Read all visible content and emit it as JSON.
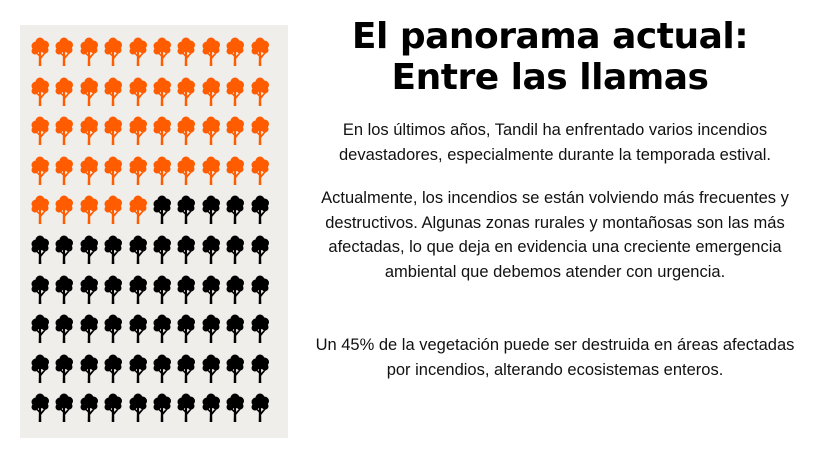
{
  "title_line1": "El panorama actual:",
  "title_line2": "Entre las llamas",
  "paragraphs": [
    "En los últimos años, Tandil ha enfrentado varios incendios devastadores, especialmente durante la temporada estival.",
    "Actualmente, los incendios se están volviendo más frecuentes y destructivos. Algunas zonas rurales y montañosas son las más afectadas, lo que deja en evidencia una creciente emergencia ambiental que debemos atender con urgencia.",
    "Un 45% de la vegetación puede ser destruida en áreas afectadas por incendios, alterando ecosistemas enteros."
  ],
  "pictogram": {
    "total": 100,
    "highlighted": 45,
    "icon": "tree-icon",
    "highlight_color": "#ff5c00",
    "base_color": "#000000"
  }
}
